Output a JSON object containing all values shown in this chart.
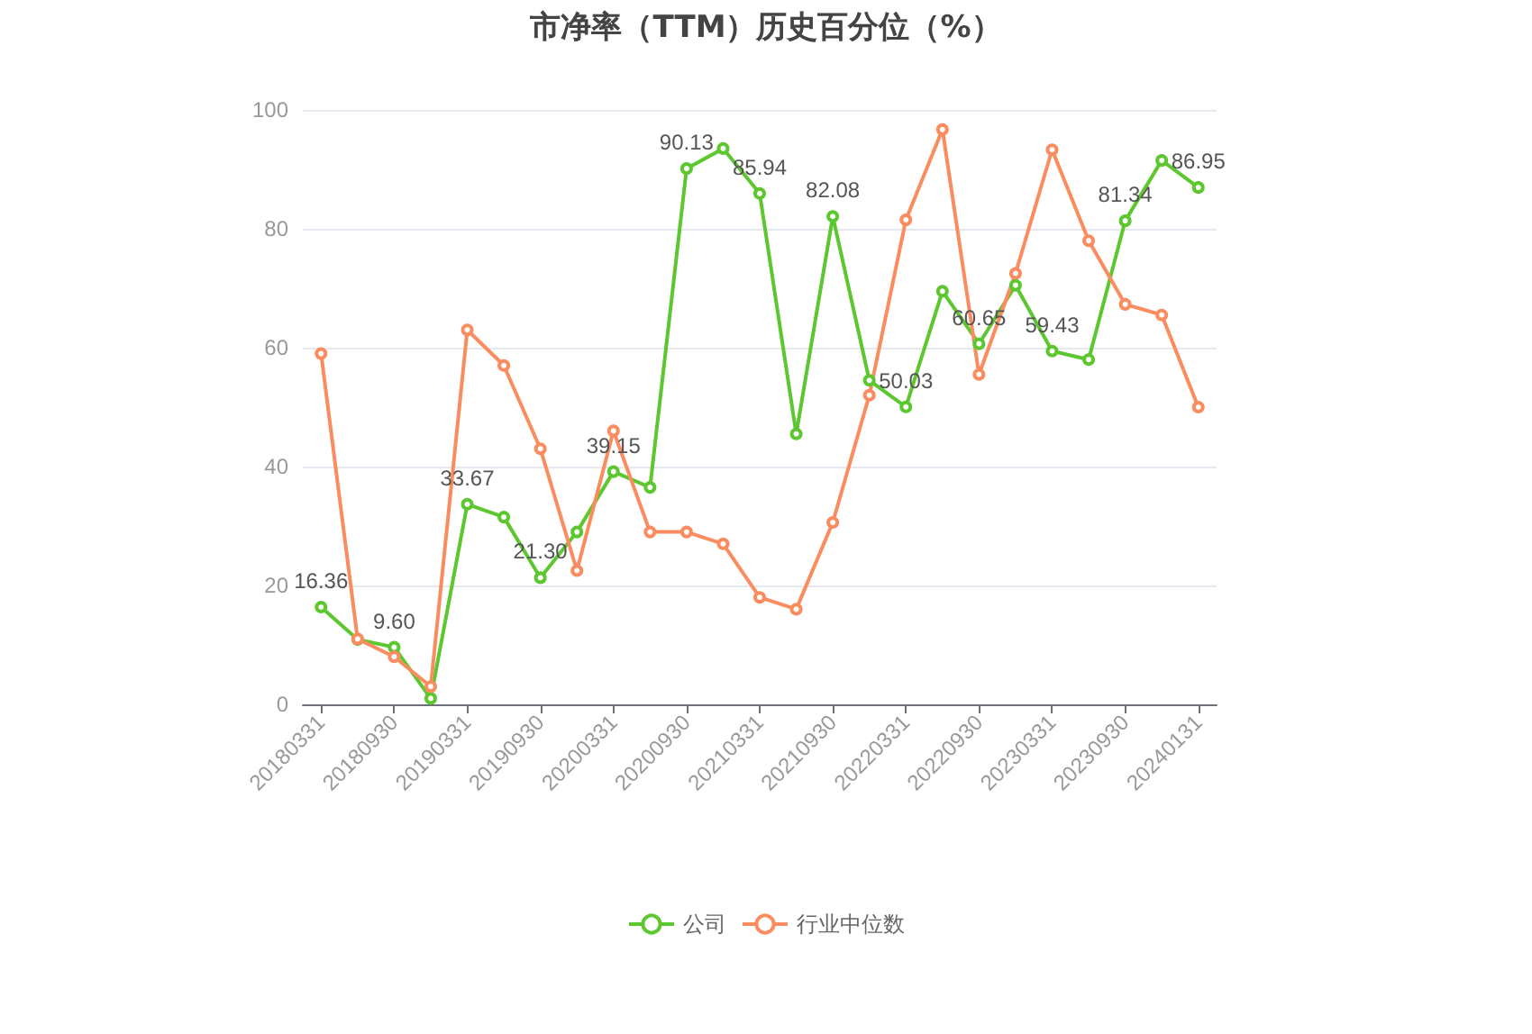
{
  "chart_data": {
    "type": "line",
    "title": "市净率（TTM）历史百分位（%）",
    "categories": [
      "20180331",
      null,
      "20180930",
      null,
      "20190331",
      null,
      "20190930",
      null,
      "20200331",
      null,
      "20200930",
      null,
      "20210331",
      null,
      "20210930",
      null,
      "20220331",
      null,
      "20220930",
      null,
      "20230331",
      null,
      "20230930",
      null,
      "20240131"
    ],
    "series": [
      {
        "name": "公司",
        "color": "#5cc72e",
        "values": [
          16.36,
          10.9,
          9.6,
          1,
          33.67,
          31.5,
          21.3,
          29,
          39.15,
          36.5,
          90.13,
          93.5,
          85.94,
          45.5,
          82.08,
          54.5,
          50.03,
          69.5,
          60.65,
          70.5,
          59.43,
          58,
          81.34,
          91.5,
          86.95
        ],
        "value_labels": [
          "16.36",
          null,
          "9.60",
          null,
          "33.67",
          null,
          "21.30",
          null,
          "39.15",
          null,
          "90.13",
          null,
          "85.94",
          null,
          "82.08",
          null,
          "50.03",
          null,
          "60.65",
          null,
          "59.43",
          null,
          "81.34",
          null,
          "86.95"
        ]
      },
      {
        "name": "行业中位数",
        "color": "#fa8c5f",
        "values": [
          59,
          11,
          8,
          3,
          63,
          57,
          43,
          22.5,
          46,
          29,
          29,
          27,
          18,
          16,
          30.6,
          52,
          81.5,
          96.7,
          55.5,
          72.5,
          93.3,
          78,
          67.3,
          65.5,
          50
        ]
      }
    ],
    "ylim": [
      0,
      100
    ],
    "yticks": [
      0,
      20,
      40,
      60,
      80,
      100
    ],
    "grid": "y",
    "legend": "bottom",
    "marker": "circle",
    "line_style": "solid"
  }
}
